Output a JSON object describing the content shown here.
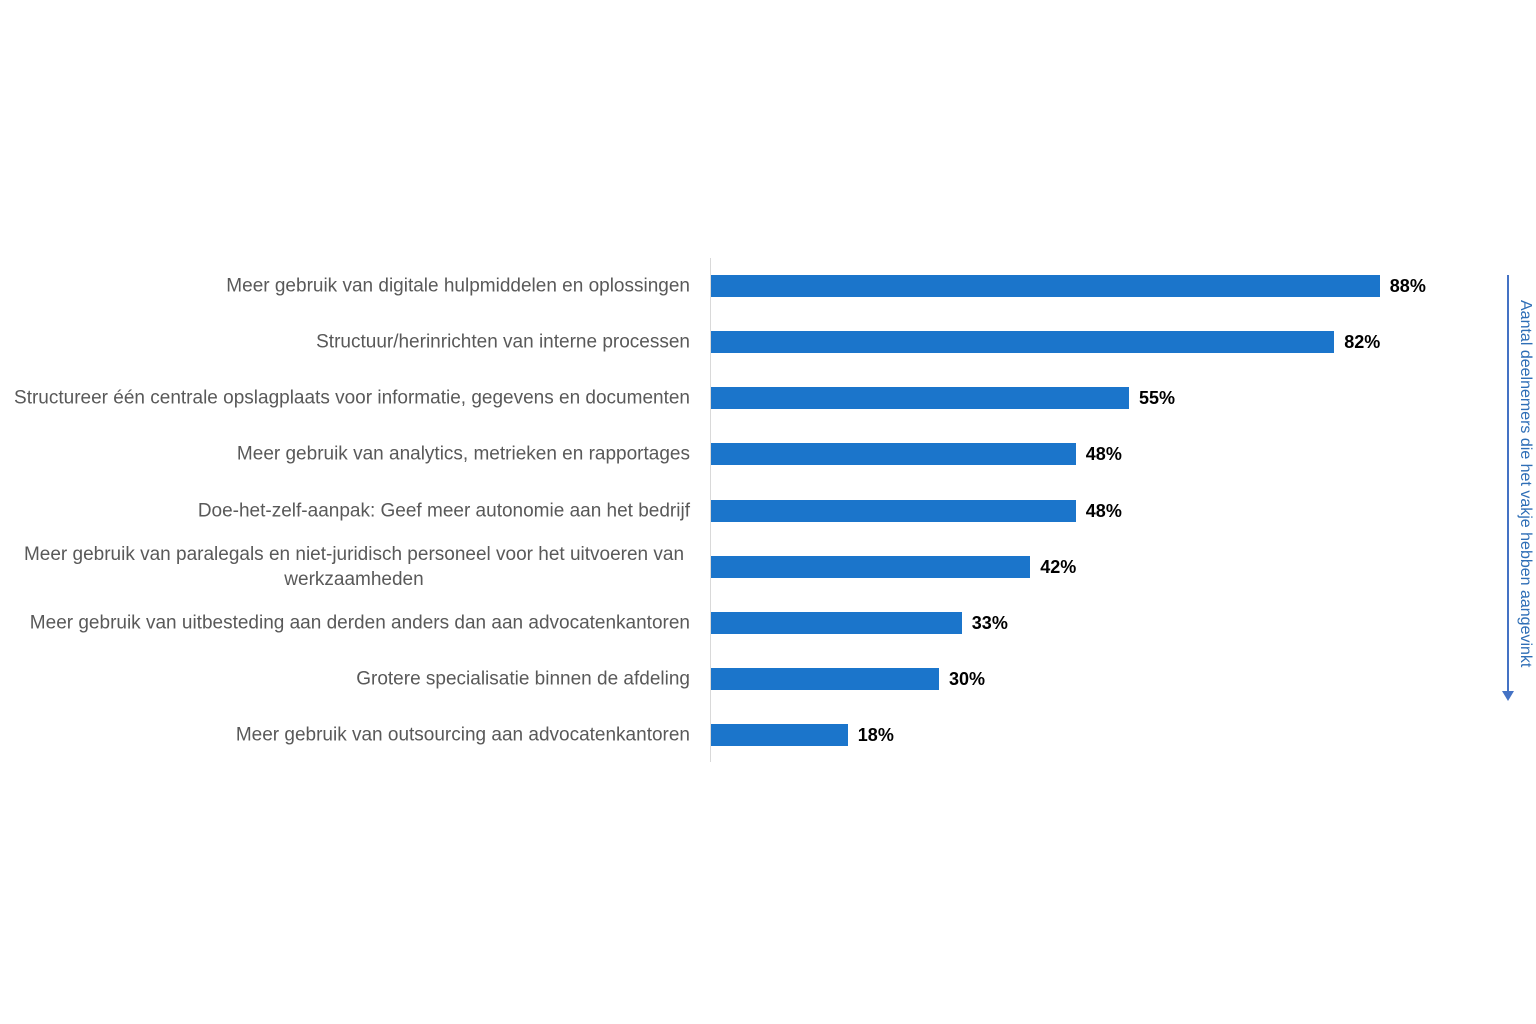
{
  "chart_data": {
    "type": "bar",
    "orientation": "horizontal",
    "categories": [
      "Meer gebruik van digitale hulpmiddelen en oplossingen",
      "Structuur/herinrichten van interne processen",
      "Structureer één centrale opslagplaats voor informatie, gegevens en documenten",
      "Meer gebruik van analytics, metrieken en rapportages",
      "Doe-het-zelf-aanpak: Geef meer autonomie aan het bedrijf",
      "Meer gebruik van paralegals en niet-juridisch personeel voor het uitvoeren van werkzaamheden",
      "Meer gebruik van uitbesteding aan derden anders dan aan advocatenkantoren",
      "Grotere specialisatie binnen de afdeling",
      "Meer gebruik van outsourcing aan advocatenkantoren"
    ],
    "values": [
      88,
      82,
      55,
      48,
      48,
      42,
      33,
      30,
      18
    ],
    "data_labels": [
      "88%",
      "82%",
      "55%",
      "48%",
      "48%",
      "42%",
      "33%",
      "30%",
      "18%"
    ],
    "xlim": [
      0,
      100
    ],
    "grid": false,
    "annotations": [
      "Aantal deelnemers die het vakje hebben aangevinkt"
    ],
    "colors": {
      "bar": "#1B75CB",
      "category_text": "#595959",
      "value_text": "#000000",
      "axis_line": "#D9D9D9",
      "annotation": "#2E6EB6",
      "arrow": "#4472C4"
    }
  }
}
